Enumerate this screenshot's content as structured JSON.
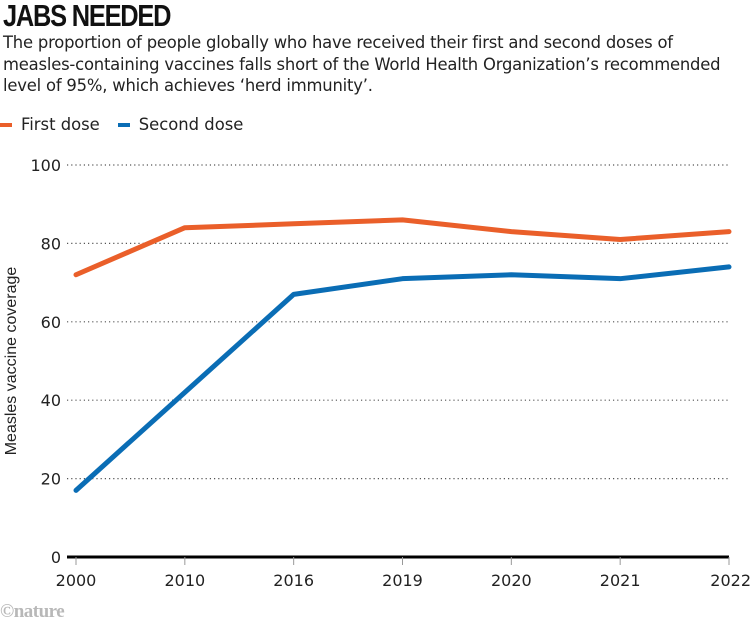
{
  "header": {
    "title": "JABS NEEDED",
    "subtitle": "The proportion of people globally who have received their first and second doses of measles-containing vaccines falls short of the World Health Organization’s recommended level of 95%, which achieves ‘herd immunity’."
  },
  "legend": {
    "items": [
      {
        "label": "First dose",
        "color": "#ea5f2a"
      },
      {
        "label": "Second dose",
        "color": "#0a6db5"
      }
    ]
  },
  "credit": "©nature",
  "chart_data": {
    "type": "line",
    "title": "JABS NEEDED",
    "xlabel": "",
    "ylabel": "Measles vaccine coverage",
    "x": [
      "2000",
      "2010",
      "2016",
      "2019",
      "2020",
      "2021",
      "2022"
    ],
    "ylim": [
      0,
      100
    ],
    "yticks": [
      0,
      20,
      40,
      60,
      80,
      100
    ],
    "grid": "horizontal-dotted",
    "legend_position": "top-left",
    "series": [
      {
        "name": "First dose",
        "color": "#ea5f2a",
        "values": [
          72,
          84,
          85,
          86,
          83,
          81,
          83
        ]
      },
      {
        "name": "Second dose",
        "color": "#0a6db5",
        "values": [
          17,
          42,
          67,
          71,
          72,
          71,
          74
        ]
      }
    ]
  }
}
